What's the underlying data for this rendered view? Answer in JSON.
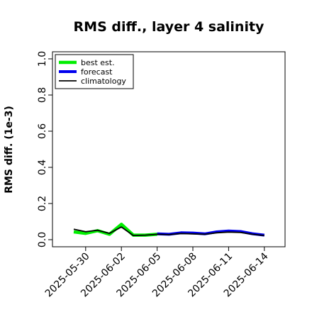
{
  "chart_data": {
    "type": "line",
    "title": "RMS diff., layer 4 salinity",
    "xlabel": "",
    "ylabel": "RMS diff. (1e-3)",
    "ylim": [
      0.0,
      1.0
    ],
    "yticks": [
      "0.0",
      "0.2",
      "0.4",
      "0.6",
      "0.8",
      "1.0"
    ],
    "xticks": [
      "2025-05-30",
      "2025-06-02",
      "2025-06-05",
      "2025-06-08",
      "2025-06-11",
      "2025-06-14"
    ],
    "highlight_tick": "2025-06-05",
    "highlight_color": "#228b22",
    "grid": false,
    "legend_placement": "top-left",
    "series": [
      {
        "name": "best est.",
        "color": "#00ee00",
        "x": [
          "2025-05-29",
          "2025-05-30",
          "2025-05-31",
          "2025-06-01",
          "2025-06-02",
          "2025-06-03",
          "2025-06-04",
          "2025-06-05"
        ],
        "values": [
          0.043,
          0.035,
          0.05,
          0.03,
          0.085,
          0.025,
          0.025,
          0.03
        ]
      },
      {
        "name": "forecast",
        "color": "#0000ee",
        "x": [
          "2025-06-05",
          "2025-06-06",
          "2025-06-07",
          "2025-06-08",
          "2025-06-09",
          "2025-06-10",
          "2025-06-11",
          "2025-06-12",
          "2025-06-13",
          "2025-06-14"
        ],
        "values": [
          0.032,
          0.03,
          0.038,
          0.037,
          0.032,
          0.043,
          0.048,
          0.045,
          0.033,
          0.025
        ]
      },
      {
        "name": "climatology",
        "color": "#000000",
        "x": [
          "2025-05-29",
          "2025-05-30",
          "2025-05-31",
          "2025-06-01",
          "2025-06-02",
          "2025-06-03",
          "2025-06-04",
          "2025-06-05",
          "2025-06-06",
          "2025-06-07",
          "2025-06-08",
          "2025-06-09",
          "2025-06-10",
          "2025-06-11",
          "2025-06-12",
          "2025-06-13",
          "2025-06-14"
        ],
        "values": [
          0.058,
          0.044,
          0.052,
          0.035,
          0.07,
          0.023,
          0.025,
          0.03,
          0.028,
          0.034,
          0.032,
          0.03,
          0.038,
          0.042,
          0.04,
          0.03,
          0.023
        ]
      }
    ]
  }
}
